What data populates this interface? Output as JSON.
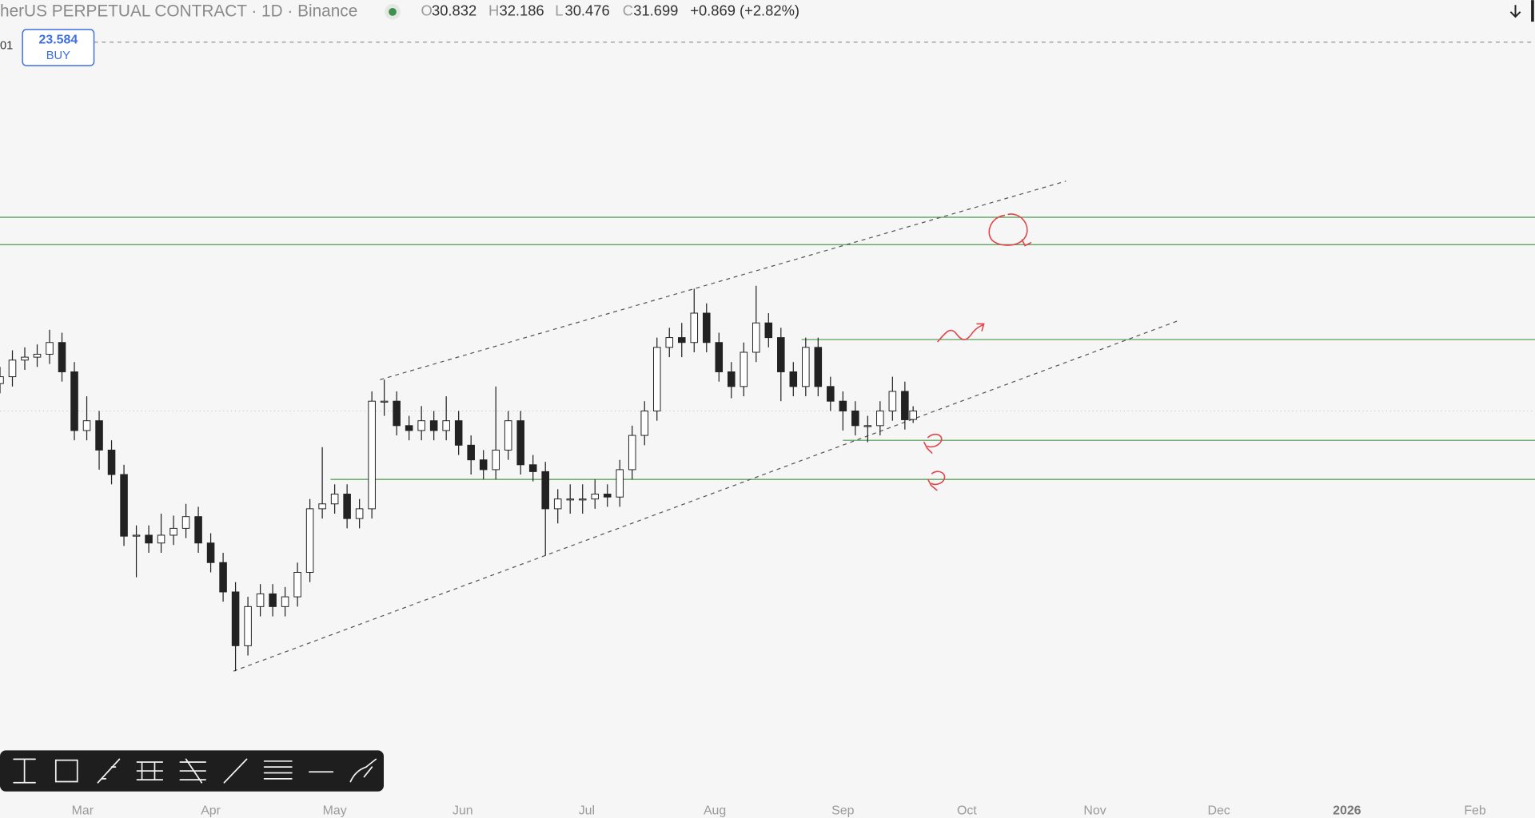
{
  "header": {
    "symbol": "herUS PERPETUAL CONTRACT · 1D · Binance",
    "o_label": "O",
    "h_label": "H",
    "l_label": "L",
    "c_label": "C",
    "change": "+0.869 (+2.82%)",
    "edge_label": "01"
  },
  "order": {
    "price": 23.584,
    "side": "BUY"
  },
  "chart_data": {
    "type": "candlestick",
    "x": [
      0,
      3,
      6,
      9,
      12,
      15,
      18,
      21,
      24,
      27,
      30,
      33,
      36,
      39,
      42,
      45,
      48,
      51,
      54,
      57,
      60,
      63,
      66,
      69,
      72,
      75,
      78,
      81,
      84,
      87,
      90,
      93,
      96,
      99,
      102,
      105,
      108,
      111,
      114,
      117,
      120,
      123,
      126,
      129,
      132,
      135,
      138,
      141,
      144,
      147,
      150,
      153,
      156,
      159,
      162,
      165,
      168,
      171,
      174,
      177,
      180,
      183,
      186,
      189,
      192,
      195,
      198,
      201,
      204,
      207,
      210,
      213,
      216,
      219,
      221
    ],
    "open": [
      34.5,
      35.2,
      36.9,
      37.2,
      37.5,
      38.7,
      35.7,
      29.7,
      30.7,
      27.7,
      25.2,
      18.9,
      19.0,
      18.2,
      19.0,
      19.7,
      20.9,
      18.2,
      16.2,
      13.2,
      7.7,
      11.7,
      13.0,
      11.7,
      12.7,
      15.2,
      21.7,
      22.2,
      23.2,
      20.7,
      21.7,
      32.7,
      32.7,
      30.2,
      29.7,
      30.7,
      29.7,
      30.7,
      28.2,
      26.7,
      25.7,
      27.7,
      30.7,
      26.2,
      25.5,
      21.7,
      22.7,
      22.7,
      22.7,
      23.2,
      22.9,
      25.7,
      29.2,
      31.7,
      38.2,
      39.2,
      38.7,
      41.7,
      38.7,
      35.7,
      34.2,
      37.7,
      40.7,
      39.2,
      35.7,
      34.2,
      38.2,
      34.2,
      32.7,
      31.7,
      30.2,
      30.2,
      31.7,
      33.7,
      30.832
    ],
    "high": [
      36.2,
      37.9,
      38.2,
      38.5,
      40.0,
      39.7,
      36.7,
      33.2,
      31.7,
      28.7,
      26.2,
      20.0,
      20.0,
      21.2,
      21.0,
      22.2,
      21.9,
      19.2,
      17.2,
      14.2,
      12.7,
      14.0,
      14.0,
      13.7,
      16.2,
      22.7,
      28.0,
      24.2,
      24.2,
      22.7,
      33.7,
      34.9,
      33.7,
      31.2,
      32.2,
      31.7,
      33.2,
      31.7,
      29.2,
      27.7,
      34.2,
      31.7,
      31.7,
      27.2,
      26.5,
      23.7,
      24.2,
      24.2,
      24.7,
      24.2,
      26.7,
      30.2,
      32.7,
      39.2,
      40.2,
      40.7,
      44.2,
      42.7,
      39.7,
      36.7,
      38.7,
      44.5,
      41.7,
      40.2,
      36.7,
      39.2,
      39.2,
      35.2,
      33.7,
      32.7,
      31.2,
      32.7,
      35.2,
      34.7,
      32.186
    ],
    "low": [
      33.5,
      34.2,
      35.9,
      36.2,
      36.5,
      34.7,
      28.7,
      28.7,
      25.7,
      24.2,
      17.9,
      14.7,
      17.2,
      17.2,
      18.0,
      18.7,
      17.2,
      15.2,
      12.2,
      5.1,
      6.7,
      10.7,
      10.7,
      10.7,
      11.7,
      14.2,
      20.7,
      21.2,
      19.7,
      19.7,
      20.7,
      31.2,
      29.2,
      28.7,
      28.7,
      28.7,
      28.7,
      27.2,
      25.2,
      24.7,
      24.7,
      26.7,
      25.2,
      24.5,
      16.9,
      20.2,
      21.2,
      21.2,
      21.7,
      21.9,
      21.9,
      24.7,
      28.2,
      30.7,
      37.2,
      37.2,
      37.7,
      37.7,
      34.7,
      33.0,
      33.2,
      36.7,
      38.2,
      32.7,
      33.2,
      33.2,
      33.2,
      31.7,
      29.7,
      29.2,
      28.5,
      29.2,
      30.7,
      29.8,
      30.476
    ],
    "close": [
      35.2,
      36.9,
      37.2,
      37.5,
      38.7,
      35.7,
      29.7,
      30.7,
      27.7,
      25.2,
      18.9,
      19.0,
      18.2,
      19.0,
      19.7,
      20.9,
      18.2,
      16.2,
      13.2,
      7.7,
      11.7,
      13.0,
      11.7,
      12.7,
      15.2,
      21.7,
      22.2,
      23.2,
      20.7,
      21.7,
      32.7,
      32.7,
      30.2,
      29.7,
      30.7,
      29.7,
      30.7,
      28.2,
      26.7,
      25.7,
      27.7,
      30.7,
      26.2,
      25.5,
      21.7,
      22.7,
      22.7,
      22.7,
      23.2,
      22.9,
      25.7,
      29.2,
      31.7,
      38.2,
      39.2,
      38.7,
      41.7,
      38.7,
      35.7,
      34.2,
      37.7,
      40.7,
      39.2,
      35.7,
      34.2,
      38.2,
      34.2,
      32.7,
      31.7,
      30.2,
      30.2,
      31.7,
      33.7,
      30.8,
      31.699
    ],
    "up_color": "#ffffff",
    "down_color": "#222222",
    "wick_color": "#222222",
    "xlim": [
      0,
      371.5
    ],
    "ylim": [
      -9.9,
      73.7
    ],
    "xticks": [
      {
        "value": 20,
        "label": "Mar"
      },
      {
        "value": 51,
        "label": "Apr"
      },
      {
        "value": 81,
        "label": "May"
      },
      {
        "value": 112,
        "label": "Jun"
      },
      {
        "value": 142,
        "label": "Jul"
      },
      {
        "value": 173,
        "label": "Aug"
      },
      {
        "value": 204,
        "label": "Sep"
      },
      {
        "value": 234,
        "label": "Oct"
      },
      {
        "value": 265,
        "label": "Nov"
      },
      {
        "value": 295,
        "label": "Dec"
      },
      {
        "value": 326,
        "label": "2026"
      },
      {
        "value": 357,
        "label": "Feb"
      }
    ],
    "hlines": [
      {
        "value": 51.5,
        "start": 0
      },
      {
        "value": 48.7,
        "start": 0
      },
      {
        "value": 39.0,
        "start": 194
      },
      {
        "value": 28.7,
        "start": 204
      },
      {
        "value": 24.7,
        "start": 80
      }
    ],
    "hline_color": "#4a9a4a",
    "trendlines": [
      {
        "x": [
          92,
          258
        ],
        "y": [
          34.9,
          55.2
        ]
      },
      {
        "x": [
          56.5,
          285
        ],
        "y": [
          5.1,
          40.9
        ]
      }
    ],
    "trend_color": "#555555"
  }
}
